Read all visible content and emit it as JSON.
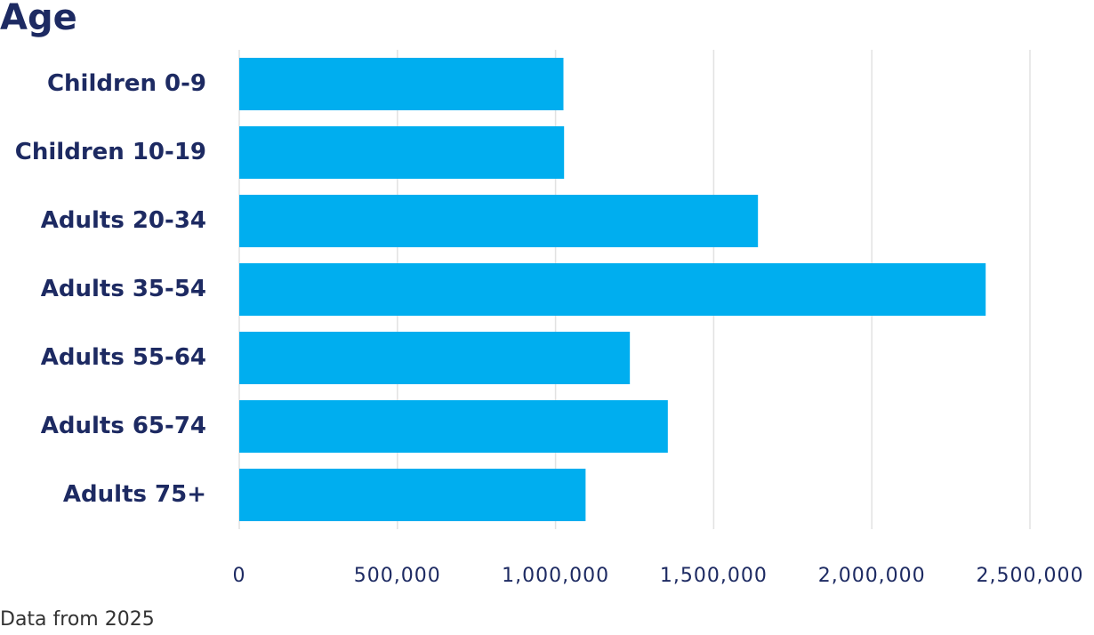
{
  "chart_data": {
    "type": "bar",
    "orientation": "horizontal",
    "title": "Age",
    "categories": [
      "Children 0-9",
      "Children 10-19",
      "Adults 20-34",
      "Adults 35-54",
      "Adults 55-64",
      "Adults 65-74",
      "Adults 75+"
    ],
    "values": [
      1025000,
      1027000,
      1640000,
      2360000,
      1235000,
      1355000,
      1095000
    ],
    "color": "#00aeef",
    "xlim": [
      0,
      2500000
    ],
    "xticks": [
      0,
      {
        "value": 500000,
        "label": "500,000"
      },
      {
        "value": 1000000,
        "label": "1,000,000"
      },
      {
        "value": 1500000,
        "label": "1,500,000"
      },
      {
        "value": 2000000,
        "label": "2,000,000"
      },
      {
        "value": 2500000,
        "label": "2,500,000"
      }
    ],
    "grid": true,
    "note": "Data from 2025"
  }
}
